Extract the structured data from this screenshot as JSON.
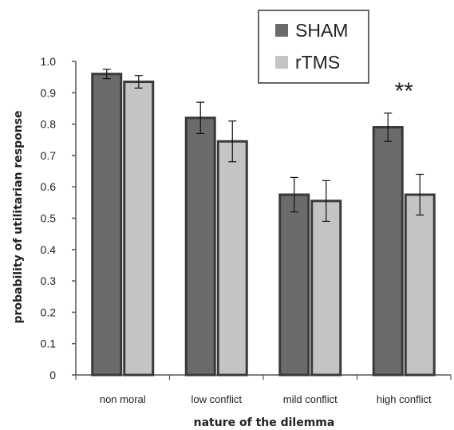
{
  "chart_data": {
    "type": "bar",
    "title": "",
    "xlabel": "nature of the dilemma",
    "ylabel": "probability of utilitarian response",
    "ylim": [
      0,
      1.0
    ],
    "yticks": [
      "0",
      "0.1",
      "0.2",
      "0.3",
      "0.4",
      "0.5",
      "0.6",
      "0.7",
      "0.8",
      "0.9",
      "1.0"
    ],
    "categories": [
      "non moral",
      "low conflict",
      "mild conflict",
      "high conflict"
    ],
    "series": [
      {
        "name": "SHAM",
        "color": "#6b6b6b",
        "values": [
          0.96,
          0.82,
          0.575,
          0.79
        ],
        "error": [
          0.015,
          0.05,
          0.055,
          0.045
        ]
      },
      {
        "name": "rTMS",
        "color": "#c4c4c4",
        "values": [
          0.935,
          0.745,
          0.555,
          0.575
        ],
        "error": [
          0.02,
          0.065,
          0.065,
          0.065
        ]
      }
    ],
    "annotations": [
      {
        "category": "high conflict",
        "text": "**"
      }
    ],
    "legend_position": "top-right",
    "grid": false
  }
}
